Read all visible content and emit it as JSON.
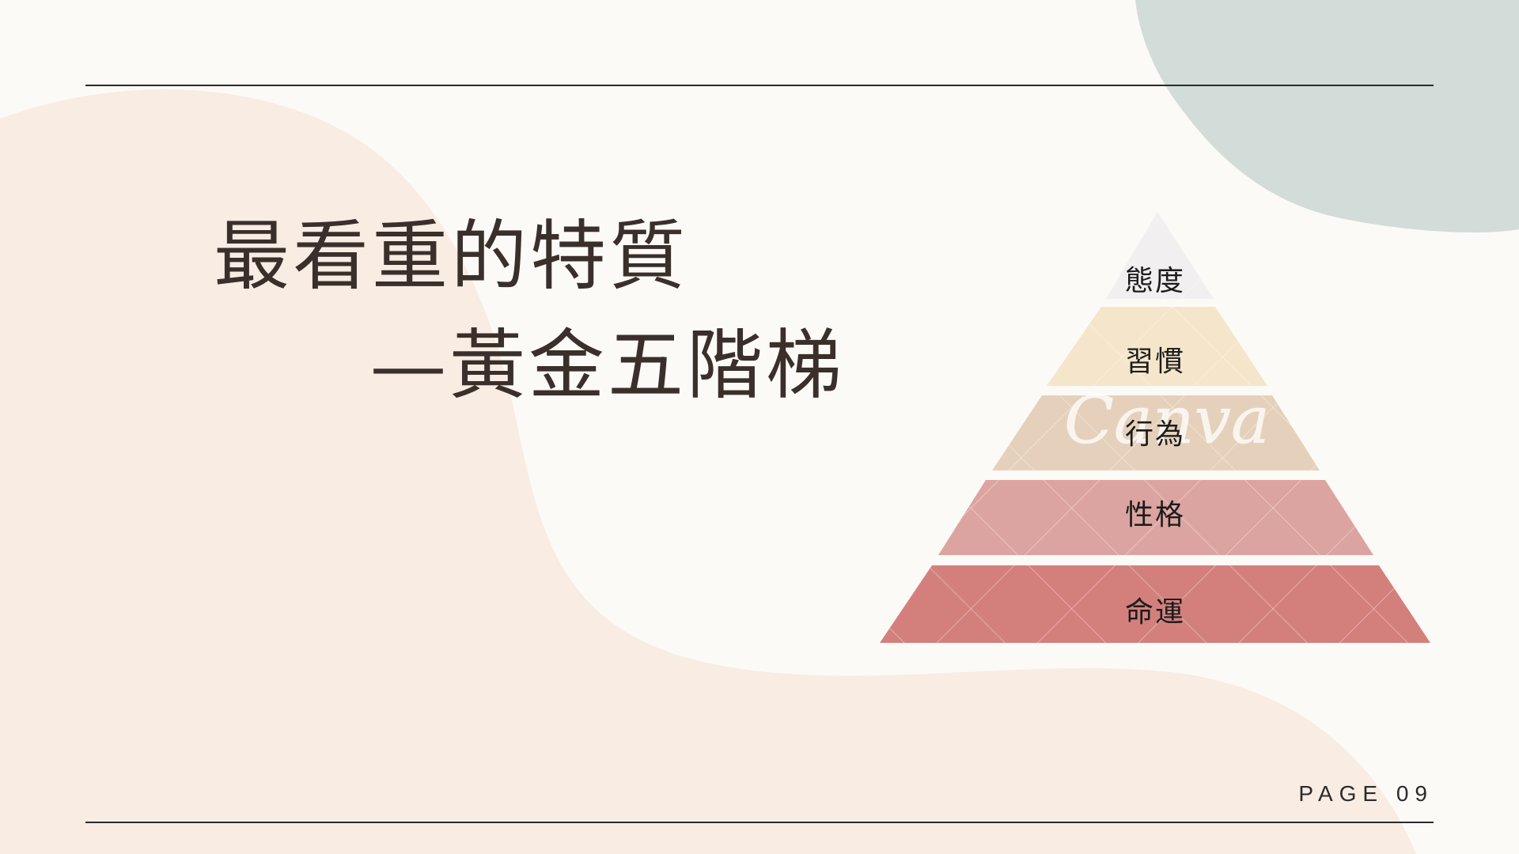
{
  "title": {
    "line1": "最看重的特質",
    "line2": "—黃金五階梯"
  },
  "pyramid": {
    "tiers": [
      {
        "label": "態度",
        "color": "#f1efef"
      },
      {
        "label": "習慣",
        "color": "#f5e5ca"
      },
      {
        "label": "行為",
        "color": "#e5d1bb"
      },
      {
        "label": "性格",
        "color": "#dca4a0"
      },
      {
        "label": "命運",
        "color": "#d3807d"
      }
    ]
  },
  "watermark": {
    "text": "Canva"
  },
  "footer": {
    "page_label": "PAGE 09"
  },
  "colors": {
    "background": "#fcfaf6",
    "peach_shape": "#f8ece3",
    "sage_shape": "#d2dcd8",
    "rule": "#2b2b2b",
    "title_text": "#3a2f2b"
  }
}
